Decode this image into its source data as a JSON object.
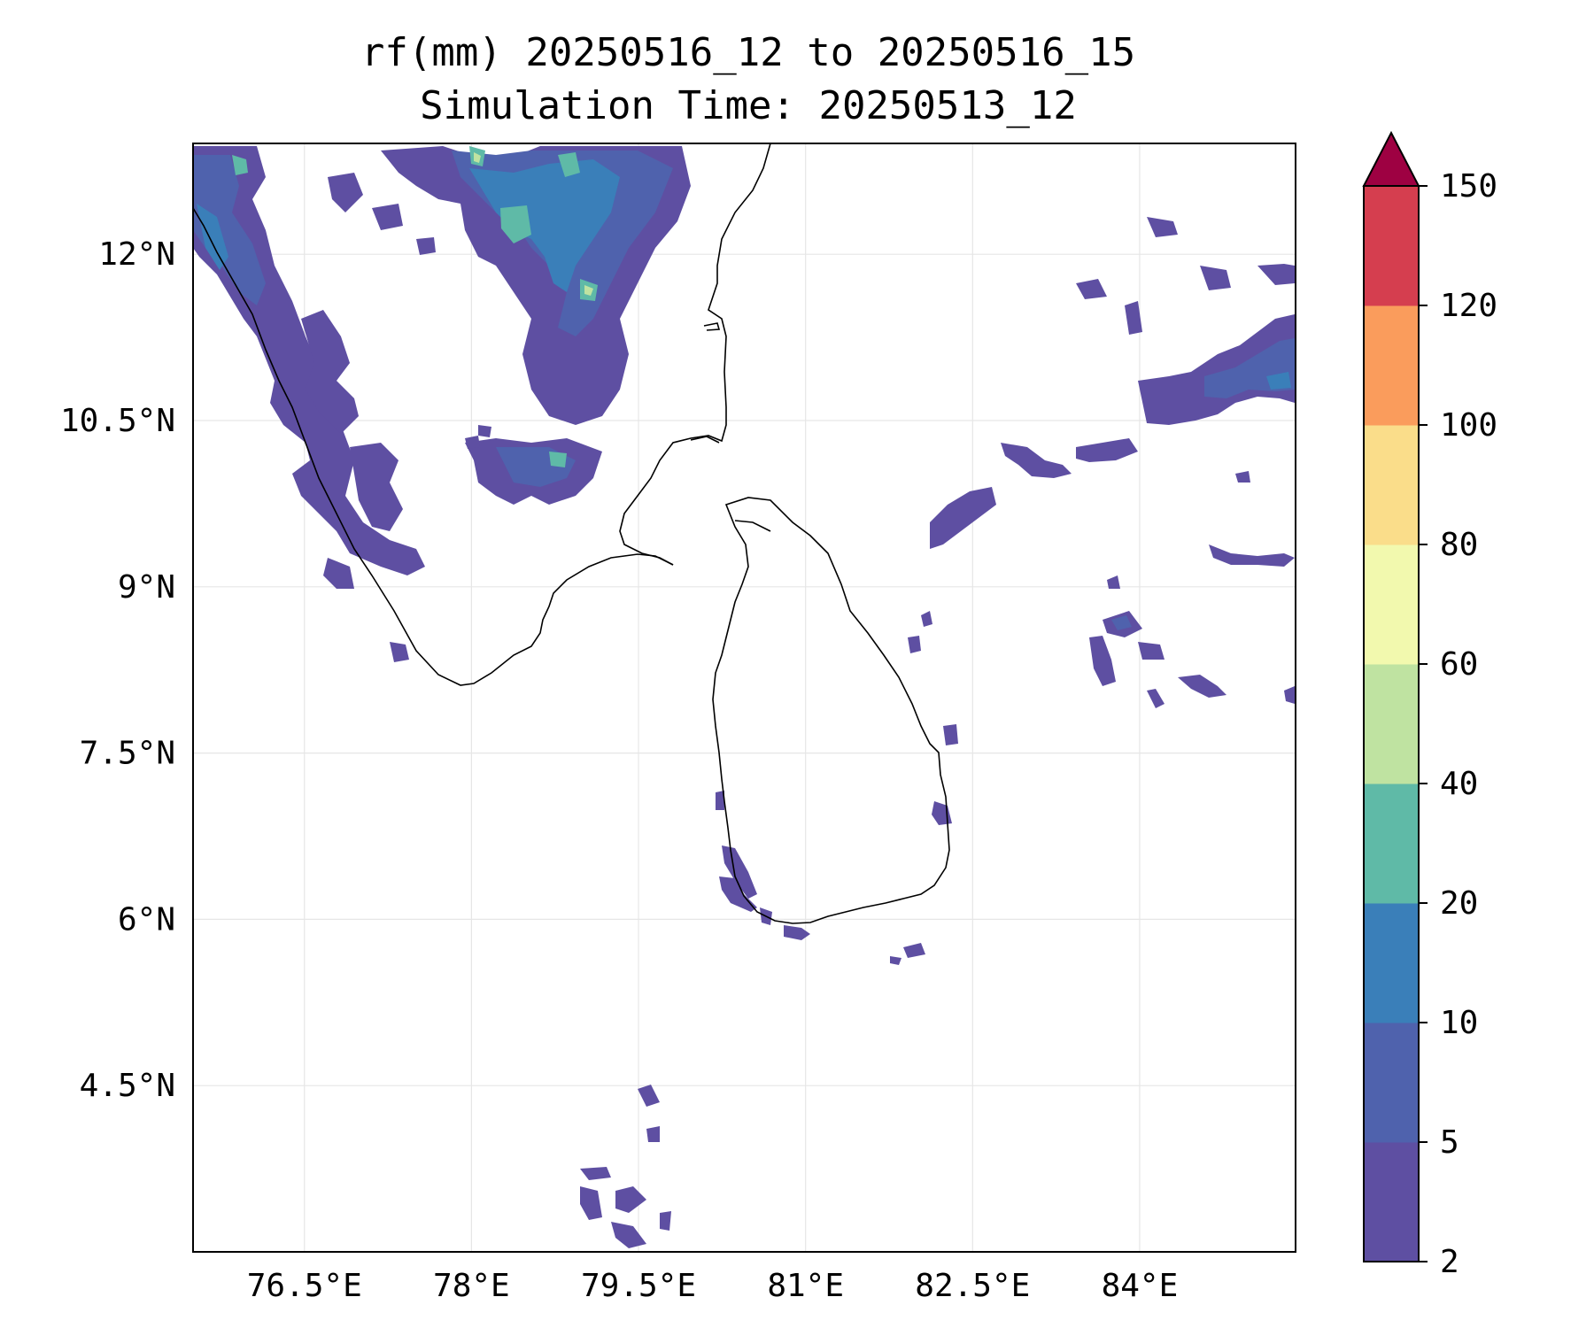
{
  "title": {
    "line1": "rf(mm) 20250516_12 to 20250516_15",
    "line2": "Simulation Time: 20250513_12"
  },
  "map": {
    "lon_range": [
      75.5,
      85.4
    ],
    "lat_range": [
      3.0,
      13.0
    ],
    "lon_ticks": [
      {
        "value": 76.5,
        "label": "76.5°E"
      },
      {
        "value": 78.0,
        "label": "78°E"
      },
      {
        "value": 79.5,
        "label": "79.5°E"
      },
      {
        "value": 81.0,
        "label": "81°E"
      },
      {
        "value": 82.5,
        "label": "82.5°E"
      },
      {
        "value": 84.0,
        "label": "84°E"
      }
    ],
    "lat_ticks": [
      {
        "value": 12.0,
        "label": "12°N"
      },
      {
        "value": 10.5,
        "label": "10.5°N"
      },
      {
        "value": 9.0,
        "label": "9°N"
      },
      {
        "value": 7.5,
        "label": "7.5°N"
      },
      {
        "value": 6.0,
        "label": "6°N"
      },
      {
        "value": 4.5,
        "label": "4.5°N"
      }
    ],
    "gridlines": true,
    "colors": {
      "coastline": "#000000",
      "gridline": "#e6e6e6"
    }
  },
  "colorbar": {
    "levels": [
      2,
      5,
      10,
      20,
      40,
      60,
      80,
      100,
      120,
      150
    ],
    "colors": [
      "#5e4fa2",
      "#4f62ad",
      "#3a7fb9",
      "#5fbaa7",
      "#bfe3a1",
      "#f2f9ae",
      "#fadd8a",
      "#fa9c5c",
      "#d53e4f"
    ],
    "extend_color": "#9e0142",
    "extend": "max"
  }
}
